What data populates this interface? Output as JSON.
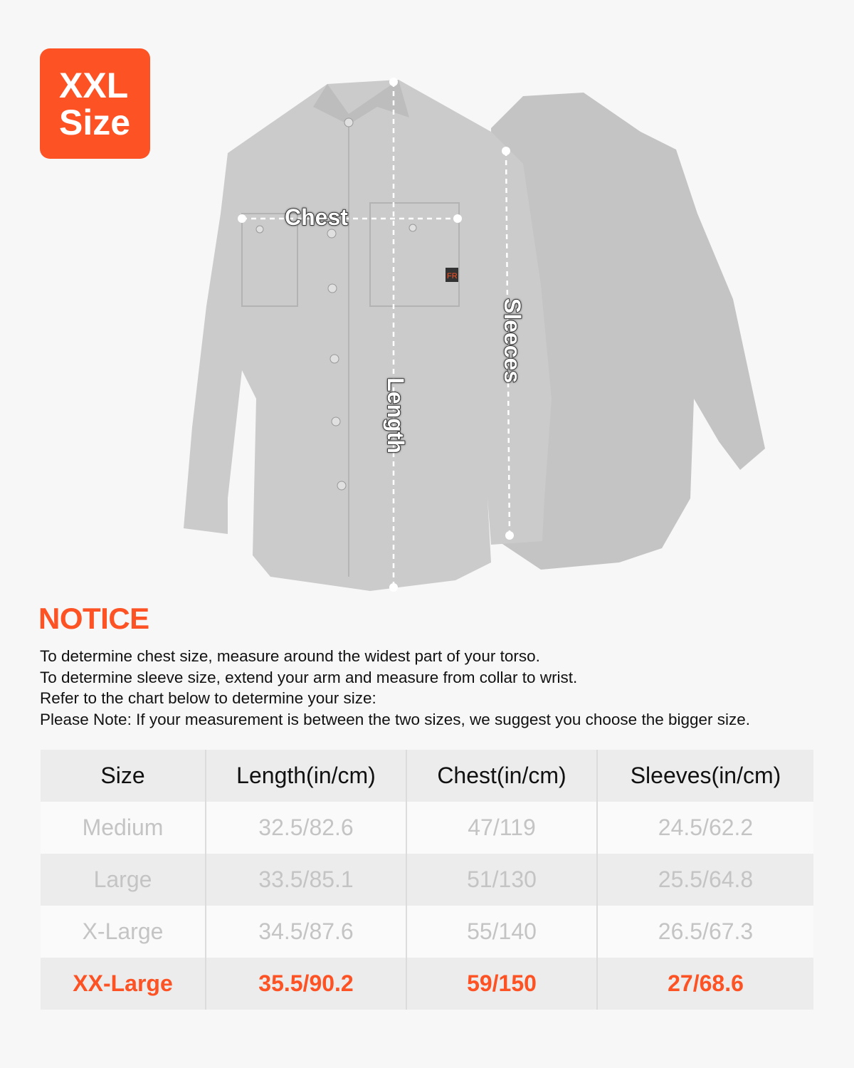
{
  "badge": {
    "line1": "XXL",
    "line2": "Size"
  },
  "measure_labels": {
    "chest": "Chest",
    "length": "Length",
    "sleeves": "Sleeces"
  },
  "shirt_patch": "FR",
  "notice": {
    "title": "NOTICE",
    "lines": [
      "To determine chest size, measure around the widest part of your torso.",
      "To determine sleeve size, extend your arm and measure from collar to wrist.",
      "Refer to the chart below to determine your size:",
      "Please Note: If your measurement is between the two sizes, we suggest you choose the bigger size."
    ]
  },
  "size_table": {
    "headers": [
      "Size",
      "Length(in/cm)",
      "Chest(in/cm)",
      "Sleeves(in/cm)"
    ],
    "rows": [
      [
        "Medium",
        "32.5/82.6",
        "47/119",
        "24.5/62.2"
      ],
      [
        "Large",
        "33.5/85.1",
        "51/130",
        "25.5/64.8"
      ],
      [
        "X-Large",
        "34.5/87.6",
        "55/140",
        "26.5/67.3"
      ],
      [
        "XX-Large",
        "35.5/90.2",
        "59/150",
        "27/68.6"
      ]
    ],
    "highlighted_row": "XX-Large"
  },
  "colors": {
    "accent": "#fd5224",
    "muted_text": "#c4c4c4",
    "shirt": "#c9c9c9"
  }
}
